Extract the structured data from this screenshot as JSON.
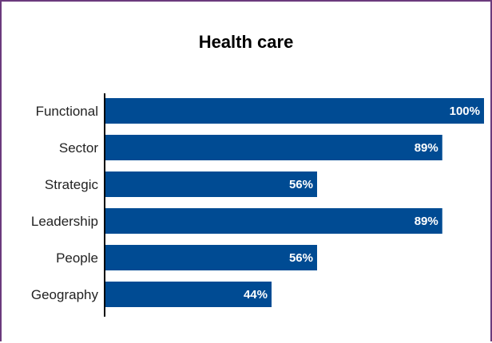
{
  "chart_data": {
    "type": "bar",
    "orientation": "horizontal",
    "title": "Health care",
    "categories": [
      "Functional",
      "Sector",
      "Strategic",
      "Leadership",
      "People",
      "Geography"
    ],
    "values": [
      100,
      89,
      56,
      89,
      56,
      44
    ],
    "value_labels": [
      "100%",
      "89%",
      "56%",
      "89%",
      "56%",
      "44%"
    ],
    "xlim": [
      0,
      100
    ],
    "grid": false,
    "legend": "none",
    "bar_color": "#004b93"
  },
  "colors": {
    "border": "#6b3a7d",
    "bar": "#004b93"
  }
}
